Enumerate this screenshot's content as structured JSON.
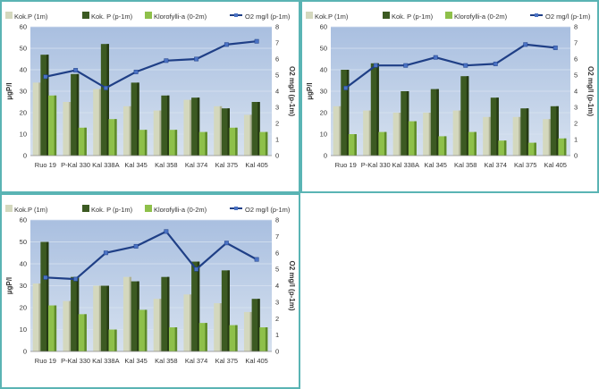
{
  "legend": {
    "items": [
      {
        "label": "Kok.P (1m)",
        "color": "#d4d8be"
      },
      {
        "label": "Kok. P (p-1m)",
        "color": "#3c5a22"
      },
      {
        "label": "Klorofylli-a (0-2m)",
        "color": "#8ec04a"
      },
      {
        "label": "O2 mg/l (p-1m)",
        "color": "#1f3f86"
      }
    ]
  },
  "colors": {
    "plot_bg": "#b3c7e2",
    "grid": "#d9e3f0",
    "text": "#333333",
    "panel_border": "#5ab4b4"
  },
  "chart_data": [
    {
      "type": "bar",
      "categories": [
        "Ruo 19",
        "P-Kal 330",
        "Kal 338A",
        "Kal 345",
        "Kal 358",
        "Kal 374",
        "Kal 375",
        "Kal 405"
      ],
      "ylabel": "µgP/l",
      "y2label": "O2 mg/l (p-1m)",
      "ylim": [
        0,
        60
      ],
      "y2lim": [
        0,
        8
      ],
      "yticks": [
        "0",
        "10",
        "20",
        "30",
        "40",
        "50",
        "60"
      ],
      "y2ticks": [
        "0",
        "1",
        "2",
        "3",
        "4",
        "5",
        "6",
        "7",
        "8"
      ],
      "grid": true,
      "legend_position": "top",
      "series": [
        {
          "name": "Kok.P (1m)",
          "values": [
            34,
            25,
            31,
            23,
            21,
            26,
            23,
            19
          ]
        },
        {
          "name": "Kok. P (p-1m)",
          "values": [
            47,
            38,
            52,
            34,
            28,
            27,
            22,
            25
          ]
        },
        {
          "name": "Klorofylli-a (0-2m)",
          "values": [
            28,
            13,
            17,
            12,
            12,
            11,
            13,
            11
          ]
        },
        {
          "name": "O2 mg/l (p-1m)",
          "type": "line",
          "axis": "right",
          "values": [
            4.9,
            5.3,
            4.2,
            5.2,
            5.9,
            6.0,
            6.9,
            7.1
          ]
        }
      ]
    },
    {
      "type": "bar",
      "categories": [
        "Ruo 19",
        "P-Kal 330",
        "Kal 338A",
        "Kal 345",
        "Kal 358",
        "Kal 374",
        "Kal 375",
        "Kal 405"
      ],
      "ylabel": "µgP/l",
      "y2label": "O2 mg/l (p-1m)",
      "ylim": [
        0,
        60
      ],
      "y2lim": [
        0,
        8
      ],
      "yticks": [
        "0",
        "10",
        "20",
        "30",
        "40",
        "50",
        "60"
      ],
      "y2ticks": [
        "0",
        "1",
        "2",
        "3",
        "4",
        "5",
        "6",
        "7",
        "8"
      ],
      "grid": true,
      "legend_position": "top",
      "series": [
        {
          "name": "Kok.P (1m)",
          "values": [
            23,
            21,
            20,
            20,
            21,
            18,
            18,
            17
          ]
        },
        {
          "name": "Kok. P (p-1m)",
          "values": [
            40,
            43,
            30,
            31,
            37,
            27,
            22,
            23
          ]
        },
        {
          "name": "Klorofylli-a (0-2m)",
          "values": [
            10,
            11,
            16,
            9,
            11,
            7,
            6,
            8
          ]
        },
        {
          "name": "O2 mg/l (p-1m)",
          "type": "line",
          "axis": "right",
          "values": [
            4.2,
            5.6,
            5.6,
            6.1,
            5.6,
            5.7,
            6.9,
            6.7
          ]
        }
      ]
    },
    {
      "type": "bar",
      "categories": [
        "Ruo 19",
        "P-Kal 330",
        "Kal 338A",
        "Kal 345",
        "Kal 358",
        "Kal 374",
        "Kal 375",
        "Kal 405"
      ],
      "ylabel": "µgP/l",
      "y2label": "O2 mg/l (p-1m)",
      "ylim": [
        0,
        60
      ],
      "y2lim": [
        0,
        8
      ],
      "yticks": [
        "0",
        "10",
        "20",
        "30",
        "40",
        "50",
        "60"
      ],
      "y2ticks": [
        "0",
        "1",
        "2",
        "3",
        "4",
        "5",
        "6",
        "7",
        "8"
      ],
      "grid": true,
      "legend_position": "top",
      "series": [
        {
          "name": "Kok.P (1m)",
          "values": [
            31,
            23,
            30,
            34,
            24,
            26,
            22,
            18
          ]
        },
        {
          "name": "Kok. P (p-1m)",
          "values": [
            50,
            34,
            30,
            32,
            34,
            41,
            37,
            24
          ]
        },
        {
          "name": "Klorofylli-a (0-2m)",
          "values": [
            21,
            17,
            10,
            19,
            11,
            13,
            12,
            11
          ]
        },
        {
          "name": "O2 mg/l (p-1m)",
          "type": "line",
          "axis": "right",
          "values": [
            4.5,
            4.4,
            6.0,
            6.4,
            7.3,
            5.0,
            6.6,
            5.6
          ]
        }
      ]
    }
  ]
}
